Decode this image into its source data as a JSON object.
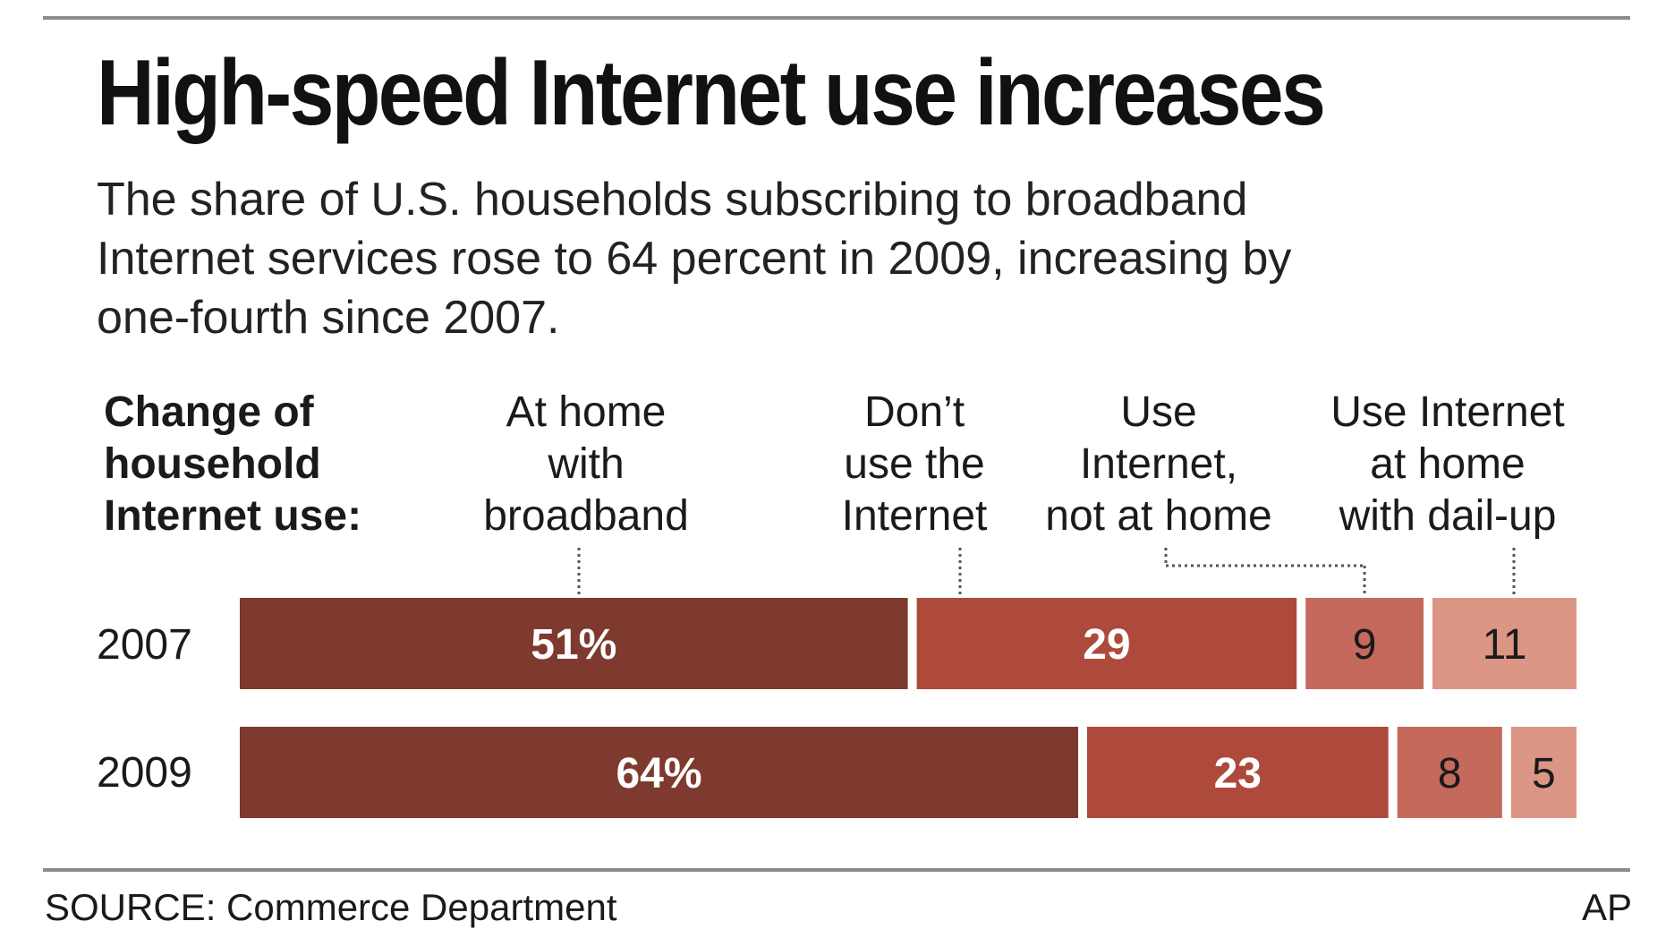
{
  "header": {
    "title": "High-speed Internet use increases",
    "subtitle_lines": [
      "The share of U.S. households subscribing to broadband",
      "Internet services rose to 64 percent in 2009, increasing by",
      "one-fourth since 2007."
    ]
  },
  "chart_label_lines": [
    "Change of",
    "household",
    "Internet use:"
  ],
  "colors": {
    "broadband": "#7e3a2f",
    "no_internet": "#ad4a3c",
    "not_at_home": "#c4695b",
    "dialup": "#dc9686",
    "text_on_dark": "#ffffff",
    "text_on_light": "#1a1a1a",
    "leader": "#555555"
  },
  "chart_data": {
    "type": "bar",
    "orientation": "horizontal",
    "stacked": true,
    "title": "Change of household Internet use:",
    "unit": "percent",
    "categories": [
      "2007",
      "2009"
    ],
    "series": [
      {
        "name": "At home with broadband",
        "label_lines": [
          "At home",
          "with",
          "broadband"
        ],
        "values": [
          51,
          64
        ],
        "display": [
          "51%",
          "64%"
        ]
      },
      {
        "name": "Don’t use the Internet",
        "label_lines": [
          "Don’t",
          "use the",
          "Internet"
        ],
        "values": [
          29,
          23
        ],
        "display": [
          "29",
          "23"
        ]
      },
      {
        "name": "Use Internet, not at home",
        "label_lines": [
          "Use",
          "Internet,",
          "not at home"
        ],
        "values": [
          9,
          8
        ],
        "display": [
          "9",
          "8"
        ]
      },
      {
        "name": "Use Internet at home with dail-up",
        "label_lines": [
          "Use Internet",
          "at home",
          "with dail-up"
        ],
        "values": [
          11,
          5
        ],
        "display": [
          "11",
          "5"
        ]
      }
    ],
    "xlim": [
      0,
      100
    ]
  },
  "footer": {
    "source": "SOURCE: Commerce Department",
    "credit": "AP"
  }
}
